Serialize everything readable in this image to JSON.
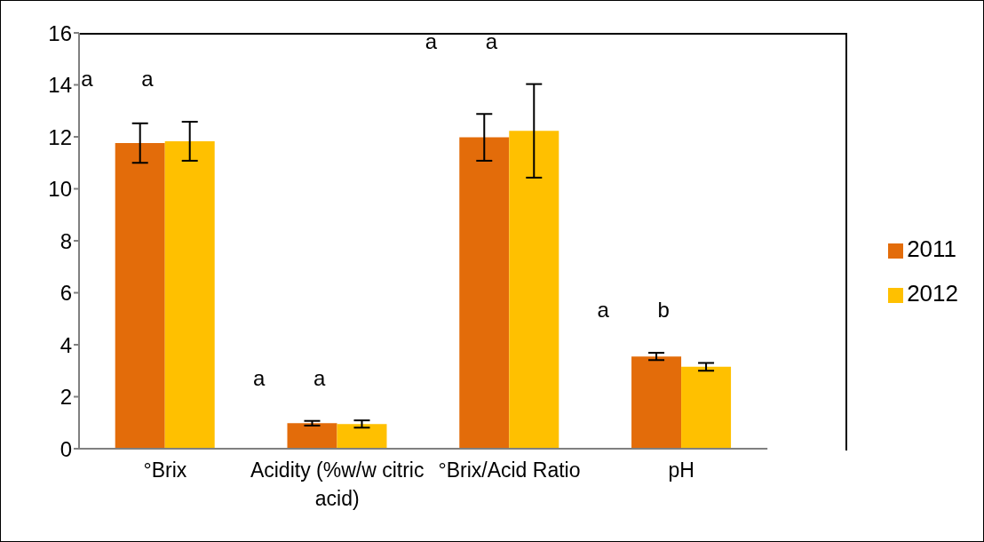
{
  "chart_data": {
    "type": "bar",
    "categories": [
      "°Brix",
      "Acidity (%w/w citric acid)",
      "°Brix/Acid Ratio",
      "pH"
    ],
    "series": [
      {
        "name": "2011",
        "color": "#e36c0a",
        "values": [
          11.76,
          0.98,
          11.98,
          3.55
        ],
        "errors": [
          0.76,
          0.09,
          0.9,
          0.14
        ]
      },
      {
        "name": "2012",
        "color": "#ffc000",
        "values": [
          11.83,
          0.95,
          12.23,
          3.15
        ],
        "errors": [
          0.75,
          0.14,
          1.8,
          0.15
        ]
      }
    ],
    "ylim": [
      0,
      16
    ],
    "yticks": [
      0,
      2,
      4,
      6,
      8,
      10,
      12,
      14,
      16
    ],
    "grid": false,
    "legend": "right",
    "annotations": [
      "a",
      "a",
      "a",
      "a",
      "a",
      "a",
      "a",
      "b"
    ]
  }
}
